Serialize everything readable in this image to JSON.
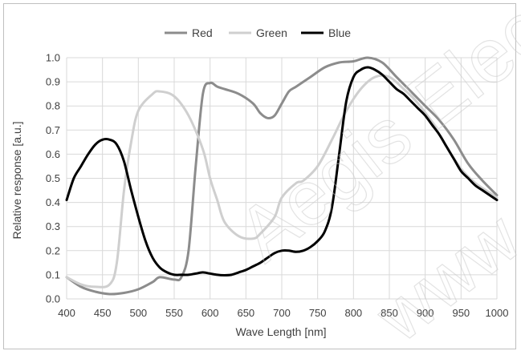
{
  "chart_data": {
    "type": "line",
    "title": "",
    "xlabel": "Wave Length [nm]",
    "ylabel": "Relative response [a.u.]",
    "xlim": [
      400,
      1000
    ],
    "ylim": [
      0,
      1.0
    ],
    "x_ticks": [
      400,
      450,
      500,
      550,
      600,
      650,
      700,
      750,
      800,
      850,
      900,
      950,
      1000
    ],
    "y_ticks": [
      0.0,
      0.1,
      0.2,
      0.3,
      0.4,
      0.5,
      0.6,
      0.7,
      0.8,
      0.9,
      1.0
    ],
    "y_tick_labels": [
      "0.0",
      "0.1",
      "0.2",
      "0.3",
      "0.4",
      "0.5",
      "0.6",
      "0.7",
      "0.8",
      "0.9",
      "1.0"
    ],
    "grid": true,
    "legend_position": "top-center",
    "series": [
      {
        "name": "Red",
        "color": "#8c8c8c",
        "x": [
          400,
          420,
          440,
          460,
          480,
          500,
          520,
          530,
          550,
          560,
          570,
          580,
          590,
          600,
          610,
          620,
          640,
          660,
          670,
          680,
          690,
          700,
          710,
          720,
          740,
          760,
          780,
          800,
          820,
          840,
          860,
          880,
          900,
          920,
          940,
          960,
          980,
          1000
        ],
        "y": [
          0.09,
          0.05,
          0.03,
          0.02,
          0.025,
          0.04,
          0.07,
          0.09,
          0.08,
          0.09,
          0.2,
          0.55,
          0.85,
          0.895,
          0.88,
          0.87,
          0.85,
          0.81,
          0.77,
          0.75,
          0.76,
          0.81,
          0.86,
          0.88,
          0.92,
          0.96,
          0.98,
          0.985,
          1.0,
          0.98,
          0.92,
          0.86,
          0.8,
          0.74,
          0.66,
          0.56,
          0.49,
          0.43
        ]
      },
      {
        "name": "Green",
        "color": "#cfcfcf",
        "x": [
          400,
          420,
          440,
          460,
          470,
          480,
          490,
          500,
          520,
          530,
          550,
          570,
          590,
          600,
          610,
          620,
          640,
          660,
          670,
          690,
          700,
          720,
          730,
          750,
          770,
          790,
          810,
          830,
          850,
          870,
          890,
          910,
          930,
          950,
          970,
          990,
          1000
        ],
        "y": [
          0.09,
          0.06,
          0.05,
          0.06,
          0.15,
          0.45,
          0.65,
          0.78,
          0.85,
          0.86,
          0.84,
          0.76,
          0.62,
          0.5,
          0.41,
          0.32,
          0.26,
          0.25,
          0.27,
          0.34,
          0.42,
          0.48,
          0.49,
          0.55,
          0.66,
          0.78,
          0.87,
          0.92,
          0.92,
          0.87,
          0.81,
          0.73,
          0.63,
          0.54,
          0.48,
          0.44,
          0.42
        ]
      },
      {
        "name": "Blue",
        "color": "#000000",
        "x": [
          400,
          410,
          420,
          430,
          440,
          450,
          460,
          470,
          480,
          490,
          500,
          510,
          520,
          530,
          540,
          550,
          560,
          570,
          580,
          590,
          600,
          610,
          620,
          630,
          640,
          650,
          660,
          670,
          680,
          690,
          700,
          710,
          720,
          730,
          740,
          750,
          760,
          770,
          780,
          790,
          800,
          810,
          820,
          830,
          840,
          850,
          860,
          870,
          880,
          890,
          900,
          910,
          920,
          930,
          940,
          950,
          960,
          970,
          980,
          990,
          1000
        ],
        "y": [
          0.41,
          0.5,
          0.55,
          0.6,
          0.64,
          0.66,
          0.66,
          0.64,
          0.57,
          0.45,
          0.34,
          0.24,
          0.17,
          0.13,
          0.11,
          0.1,
          0.1,
          0.1,
          0.105,
          0.11,
          0.105,
          0.1,
          0.098,
          0.1,
          0.11,
          0.12,
          0.135,
          0.15,
          0.17,
          0.19,
          0.2,
          0.2,
          0.195,
          0.2,
          0.215,
          0.24,
          0.28,
          0.38,
          0.6,
          0.82,
          0.92,
          0.95,
          0.96,
          0.95,
          0.93,
          0.9,
          0.87,
          0.85,
          0.82,
          0.79,
          0.76,
          0.72,
          0.68,
          0.63,
          0.58,
          0.53,
          0.5,
          0.47,
          0.45,
          0.43,
          0.41
        ]
      }
    ]
  },
  "watermark": {
    "text_1": "Aegis Electr",
    "text_2": "www.aeg"
  }
}
